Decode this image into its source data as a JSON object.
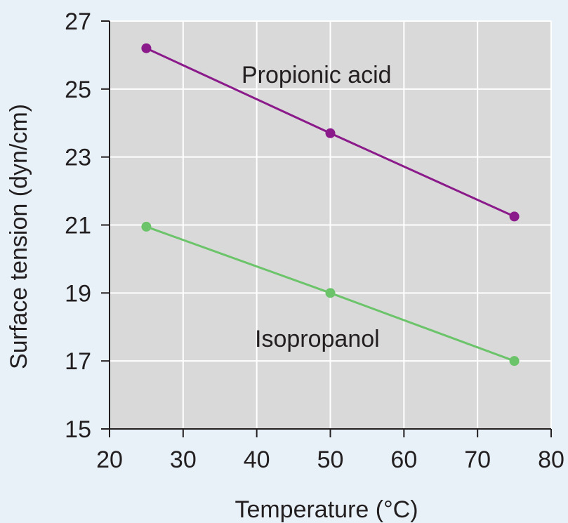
{
  "chart_data": {
    "type": "line",
    "title": "",
    "xlabel": "Temperature (°C)",
    "ylabel": "Surface tension (dyn/cm)",
    "xlim": [
      20,
      80
    ],
    "ylim": [
      15,
      27
    ],
    "x_ticks": [
      20,
      30,
      40,
      50,
      60,
      70,
      80
    ],
    "y_ticks": [
      15,
      17,
      19,
      21,
      23,
      25,
      27
    ],
    "x_tick_labels": [
      "20",
      "30",
      "40",
      "50",
      "60",
      "70",
      "80"
    ],
    "y_tick_labels": [
      "15",
      "17",
      "19",
      "21",
      "23",
      "25",
      "27"
    ],
    "grid": true,
    "legend": "none",
    "series": [
      {
        "name": "Propionic acid",
        "color": "#8b1a8b",
        "x": [
          25,
          50,
          75
        ],
        "y": [
          26.2,
          23.7,
          21.25
        ]
      },
      {
        "name": "Isopropanol",
        "color": "#6cc46a",
        "x": [
          25,
          50,
          75
        ],
        "y": [
          20.95,
          19.0,
          17.0
        ]
      }
    ]
  },
  "colors": {
    "background": "#e8f1f8",
    "plot_area": "#d9d9d9",
    "grid": "#ffffff",
    "axis": "#231f20"
  }
}
